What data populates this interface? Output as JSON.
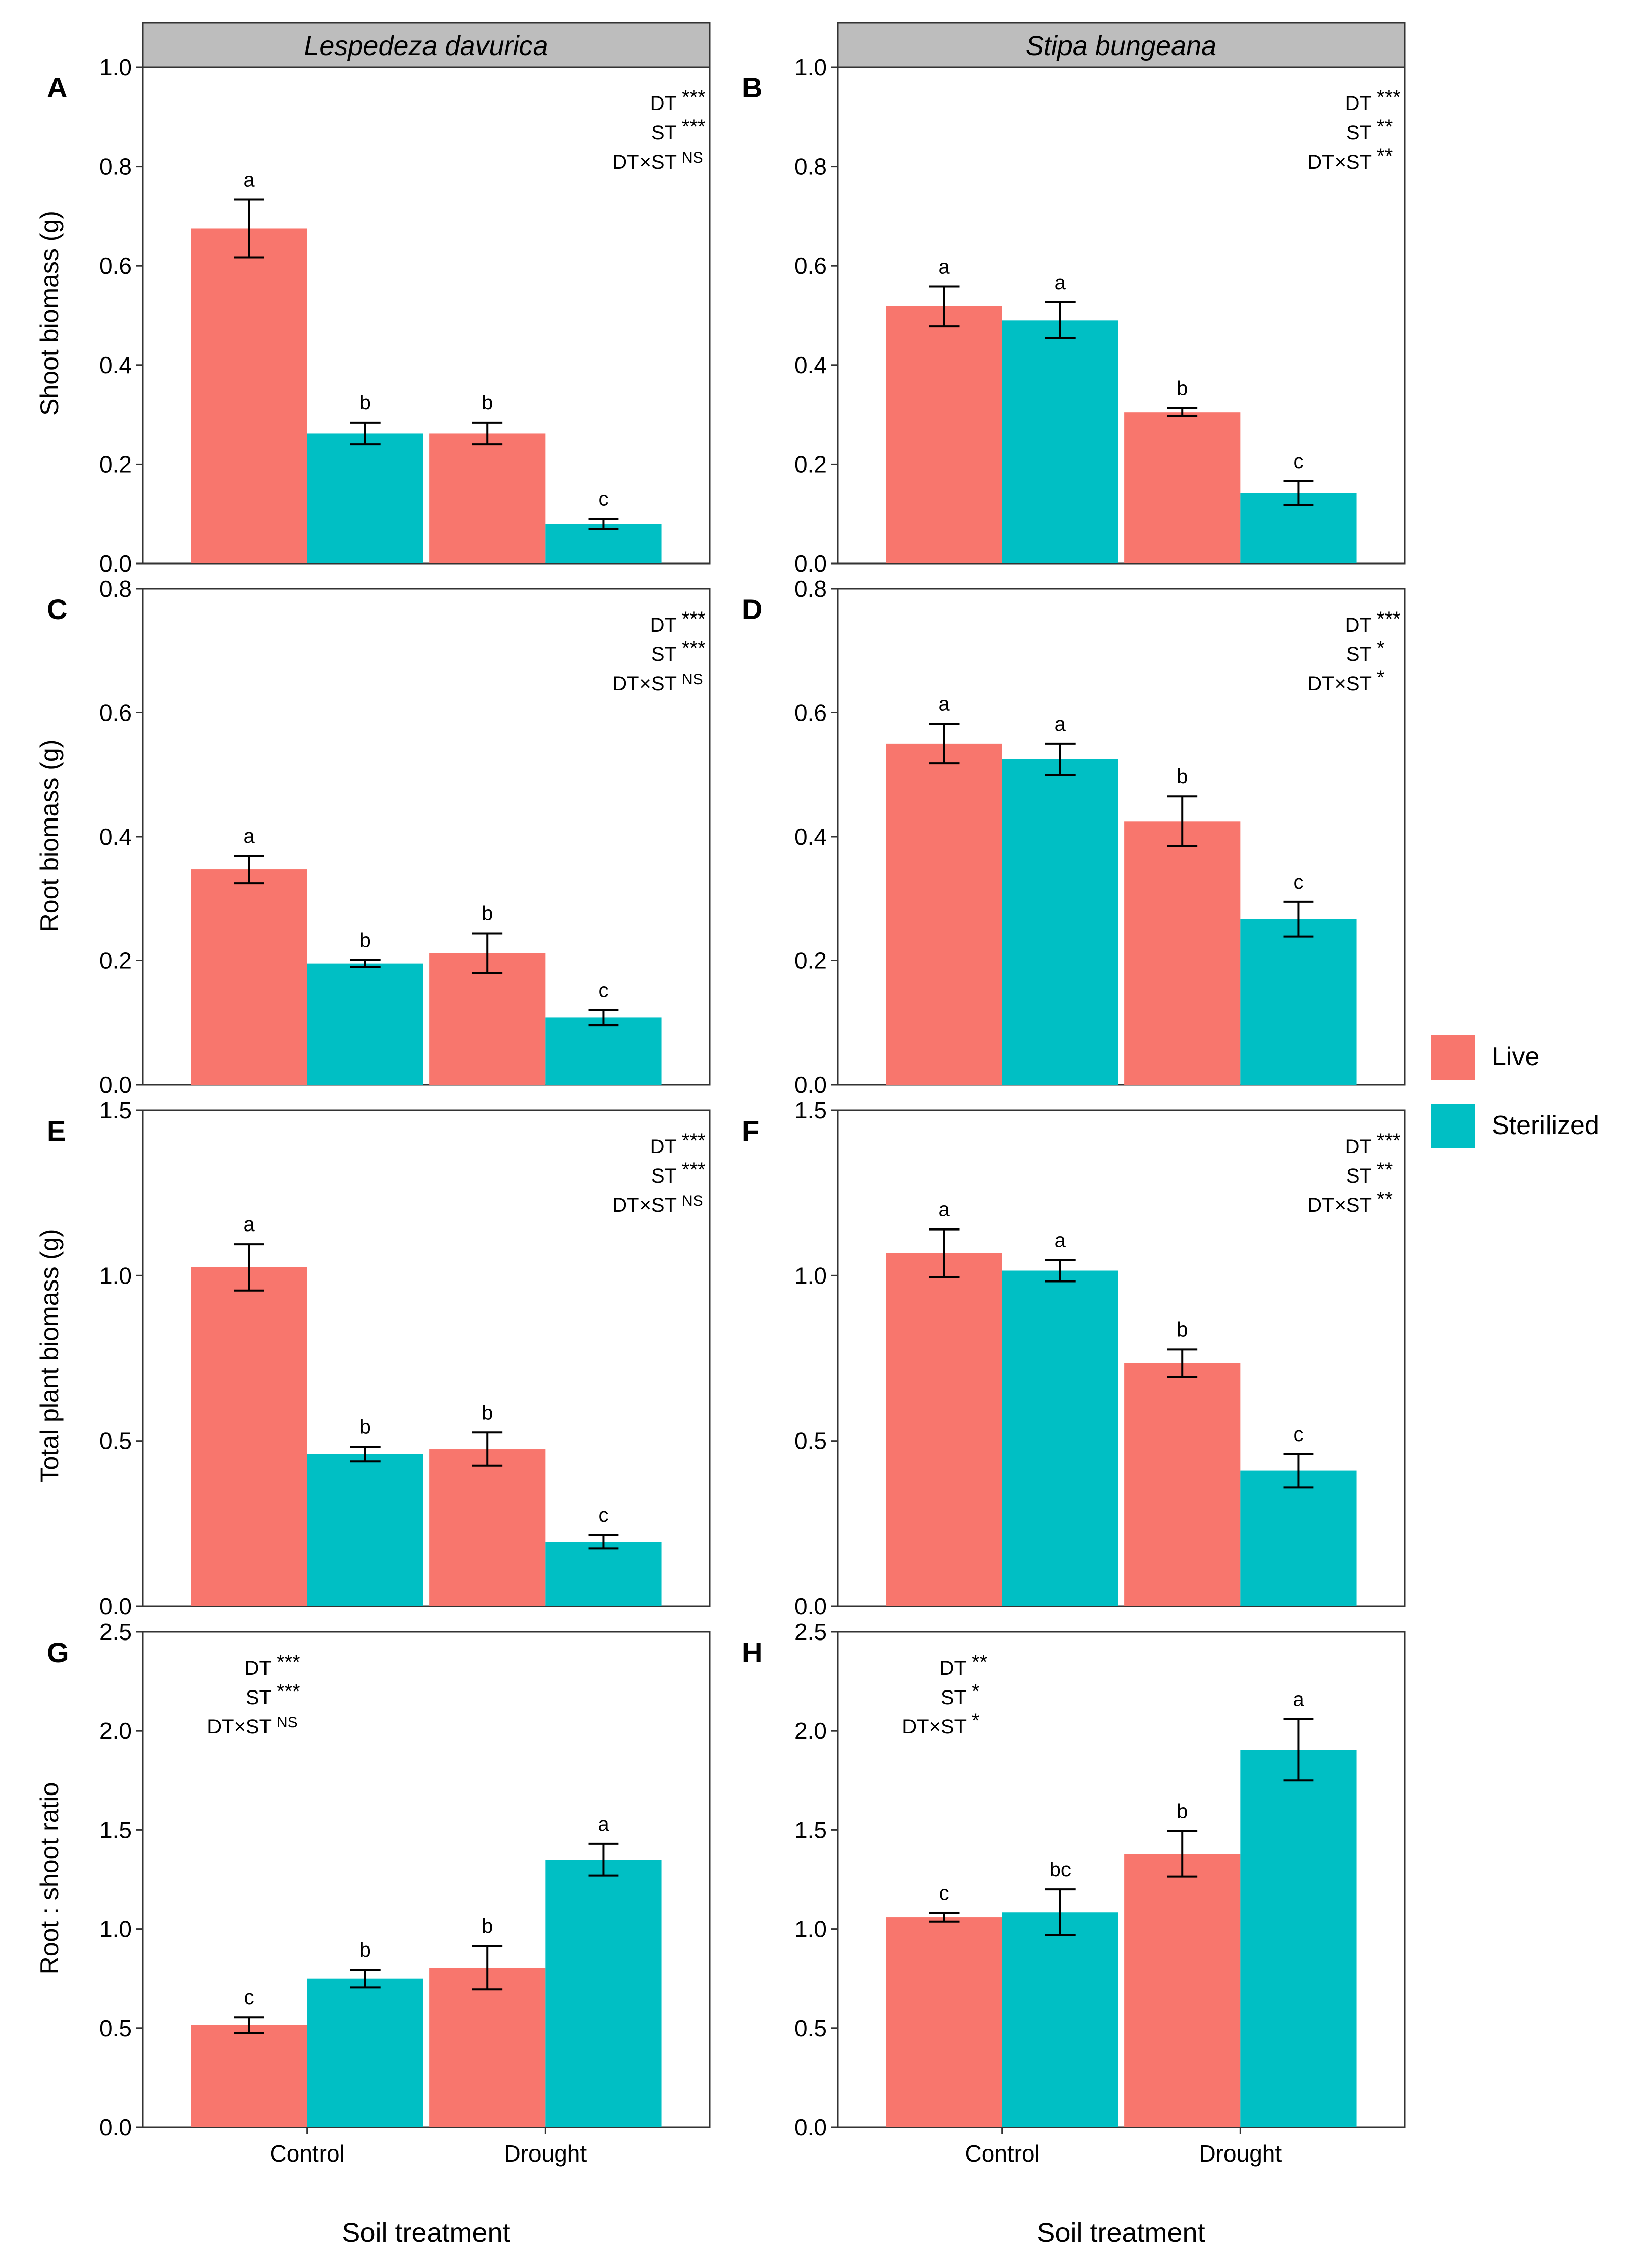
{
  "figure": {
    "x_axis_title": "Soil treatment",
    "groups": [
      "Control",
      "Drought"
    ],
    "legend": [
      {
        "label": "Live",
        "color": "#F8766D"
      },
      {
        "label": "Sterilized",
        "color": "#00BFC4"
      }
    ]
  },
  "strips": [
    "Lespedeza davurica",
    "Stipa bungeana"
  ],
  "y_titles": [
    "Shoot biomass (g)",
    "Root biomass (g)",
    "Total plant biomass (g)",
    "Root : shoot ratio"
  ],
  "chart_data": [
    {
      "panel": "A",
      "type": "bar",
      "species": "Lespedeza davurica",
      "ylabel": "Shoot biomass (g)",
      "xlabel": "",
      "ylim": [
        0,
        1.0
      ],
      "yticks": [
        0.0,
        0.2,
        0.4,
        0.6,
        0.8,
        1.0
      ],
      "ytick_labels": [
        "0.0",
        "0.2",
        "0.4",
        "0.6",
        "0.8",
        "1.0"
      ],
      "categories": [
        "Control",
        "Drought"
      ],
      "series": [
        {
          "name": "Live",
          "values": [
            0.675,
            0.262
          ],
          "errors": [
            0.058,
            0.022
          ],
          "letters": [
            "a",
            "b"
          ]
        },
        {
          "name": "Sterilized",
          "values": [
            0.262,
            0.08
          ],
          "errors": [
            0.022,
            0.01
          ],
          "letters": [
            "b",
            "c"
          ]
        }
      ],
      "stats_position": "top-right",
      "stats": [
        {
          "term": "DT",
          "sig": "***"
        },
        {
          "term": "ST",
          "sig": "***"
        },
        {
          "term": "DT×ST",
          "sig": "NS"
        }
      ]
    },
    {
      "panel": "B",
      "type": "bar",
      "species": "Stipa bungeana",
      "ylabel": "",
      "xlabel": "",
      "ylim": [
        0,
        1.0
      ],
      "yticks": [
        0.0,
        0.2,
        0.4,
        0.6,
        0.8,
        1.0
      ],
      "ytick_labels": [
        "0.0",
        "0.2",
        "0.4",
        "0.6",
        "0.8",
        "1.0"
      ],
      "categories": [
        "Control",
        "Drought"
      ],
      "series": [
        {
          "name": "Live",
          "values": [
            0.518,
            0.305
          ],
          "errors": [
            0.04,
            0.008
          ],
          "letters": [
            "a",
            "b"
          ]
        },
        {
          "name": "Sterilized",
          "values": [
            0.49,
            0.142
          ],
          "errors": [
            0.036,
            0.024
          ],
          "letters": [
            "a",
            "c"
          ]
        }
      ],
      "stats_position": "top-right",
      "stats": [
        {
          "term": "DT",
          "sig": "***"
        },
        {
          "term": "ST",
          "sig": "**"
        },
        {
          "term": "DT×ST",
          "sig": "**"
        }
      ]
    },
    {
      "panel": "C",
      "type": "bar",
      "species": "Lespedeza davurica",
      "ylabel": "Root biomass (g)",
      "xlabel": "",
      "ylim": [
        0,
        0.8
      ],
      "yticks": [
        0.0,
        0.2,
        0.4,
        0.6,
        0.8
      ],
      "ytick_labels": [
        "0.0",
        "0.2",
        "0.4",
        "0.6",
        "0.8"
      ],
      "categories": [
        "Control",
        "Drought"
      ],
      "series": [
        {
          "name": "Live",
          "values": [
            0.347,
            0.212
          ],
          "errors": [
            0.022,
            0.032
          ],
          "letters": [
            "a",
            "b"
          ]
        },
        {
          "name": "Sterilized",
          "values": [
            0.195,
            0.108
          ],
          "errors": [
            0.006,
            0.012
          ],
          "letters": [
            "b",
            "c"
          ]
        }
      ],
      "stats_position": "top-right",
      "stats": [
        {
          "term": "DT",
          "sig": "***"
        },
        {
          "term": "ST",
          "sig": "***"
        },
        {
          "term": "DT×ST",
          "sig": "NS"
        }
      ]
    },
    {
      "panel": "D",
      "type": "bar",
      "species": "Stipa bungeana",
      "ylabel": "",
      "xlabel": "",
      "ylim": [
        0,
        0.8
      ],
      "yticks": [
        0.0,
        0.2,
        0.4,
        0.6,
        0.8
      ],
      "ytick_labels": [
        "0.0",
        "0.2",
        "0.4",
        "0.6",
        "0.8"
      ],
      "categories": [
        "Control",
        "Drought"
      ],
      "series": [
        {
          "name": "Live",
          "values": [
            0.55,
            0.425
          ],
          "errors": [
            0.032,
            0.04
          ],
          "letters": [
            "a",
            "b"
          ]
        },
        {
          "name": "Sterilized",
          "values": [
            0.525,
            0.267
          ],
          "errors": [
            0.025,
            0.028
          ],
          "letters": [
            "a",
            "c"
          ]
        }
      ],
      "stats_position": "top-right",
      "stats": [
        {
          "term": "DT",
          "sig": "***"
        },
        {
          "term": "ST",
          "sig": "*"
        },
        {
          "term": "DT×ST",
          "sig": "*"
        }
      ]
    },
    {
      "panel": "E",
      "type": "bar",
      "species": "Lespedeza davurica",
      "ylabel": "Total plant biomass (g)",
      "xlabel": "",
      "ylim": [
        0,
        1.5
      ],
      "yticks": [
        0.0,
        0.5,
        1.0,
        1.5
      ],
      "ytick_labels": [
        "0.0",
        "0.5",
        "1.0",
        "1.5"
      ],
      "categories": [
        "Control",
        "Drought"
      ],
      "series": [
        {
          "name": "Live",
          "values": [
            1.025,
            0.475
          ],
          "errors": [
            0.07,
            0.05
          ],
          "letters": [
            "a",
            "b"
          ]
        },
        {
          "name": "Sterilized",
          "values": [
            0.46,
            0.195
          ],
          "errors": [
            0.022,
            0.02
          ],
          "letters": [
            "b",
            "c"
          ]
        }
      ],
      "stats_position": "top-right",
      "stats": [
        {
          "term": "DT",
          "sig": "***"
        },
        {
          "term": "ST",
          "sig": "***"
        },
        {
          "term": "DT×ST",
          "sig": "NS"
        }
      ]
    },
    {
      "panel": "F",
      "type": "bar",
      "species": "Stipa bungeana",
      "ylabel": "",
      "xlabel": "",
      "ylim": [
        0,
        1.5
      ],
      "yticks": [
        0.0,
        0.5,
        1.0,
        1.5
      ],
      "ytick_labels": [
        "0.0",
        "0.5",
        "1.0",
        "1.5"
      ],
      "categories": [
        "Control",
        "Drought"
      ],
      "series": [
        {
          "name": "Live",
          "values": [
            1.068,
            0.735
          ],
          "errors": [
            0.072,
            0.042
          ],
          "letters": [
            "a",
            "b"
          ]
        },
        {
          "name": "Sterilized",
          "values": [
            1.015,
            0.41
          ],
          "errors": [
            0.032,
            0.05
          ],
          "letters": [
            "a",
            "c"
          ]
        }
      ],
      "stats_position": "top-right",
      "stats": [
        {
          "term": "DT",
          "sig": "***"
        },
        {
          "term": "ST",
          "sig": "**"
        },
        {
          "term": "DT×ST",
          "sig": "**"
        }
      ]
    },
    {
      "panel": "G",
      "type": "bar",
      "species": "Lespedeza davurica",
      "ylabel": "Root : shoot ratio",
      "xlabel": "Soil treatment",
      "ylim": [
        0,
        2.5
      ],
      "yticks": [
        0.0,
        0.5,
        1.0,
        1.5,
        2.0,
        2.5
      ],
      "ytick_labels": [
        "0.0",
        "0.5",
        "1.0",
        "1.5",
        "2.0",
        "2.5"
      ],
      "categories": [
        "Control",
        "Drought"
      ],
      "series": [
        {
          "name": "Live",
          "values": [
            0.515,
            0.805
          ],
          "errors": [
            0.04,
            0.11
          ],
          "letters": [
            "c",
            "b"
          ]
        },
        {
          "name": "Sterilized",
          "values": [
            0.75,
            1.35
          ],
          "errors": [
            0.045,
            0.08
          ],
          "letters": [
            "b",
            "a"
          ]
        }
      ],
      "stats_position": "top-left",
      "stats": [
        {
          "term": "DT",
          "sig": "***"
        },
        {
          "term": "ST",
          "sig": "***"
        },
        {
          "term": "DT×ST",
          "sig": "NS"
        }
      ]
    },
    {
      "panel": "H",
      "type": "bar",
      "species": "Stipa bungeana",
      "ylabel": "",
      "xlabel": "Soil treatment",
      "ylim": [
        0,
        2.5
      ],
      "yticks": [
        0.0,
        0.5,
        1.0,
        1.5,
        2.0,
        2.5
      ],
      "ytick_labels": [
        "0.0",
        "0.5",
        "1.0",
        "1.5",
        "2.0",
        "2.5"
      ],
      "categories": [
        "Control",
        "Drought"
      ],
      "series": [
        {
          "name": "Live",
          "values": [
            1.06,
            1.38
          ],
          "errors": [
            0.022,
            0.115
          ],
          "letters": [
            "c",
            "b"
          ]
        },
        {
          "name": "Sterilized",
          "values": [
            1.085,
            1.905
          ],
          "errors": [
            0.115,
            0.155
          ],
          "letters": [
            "bc",
            "a"
          ]
        }
      ],
      "stats_position": "top-left",
      "stats": [
        {
          "term": "DT",
          "sig": "**"
        },
        {
          "term": "ST",
          "sig": "*"
        },
        {
          "term": "DT×ST",
          "sig": "*"
        }
      ]
    }
  ]
}
